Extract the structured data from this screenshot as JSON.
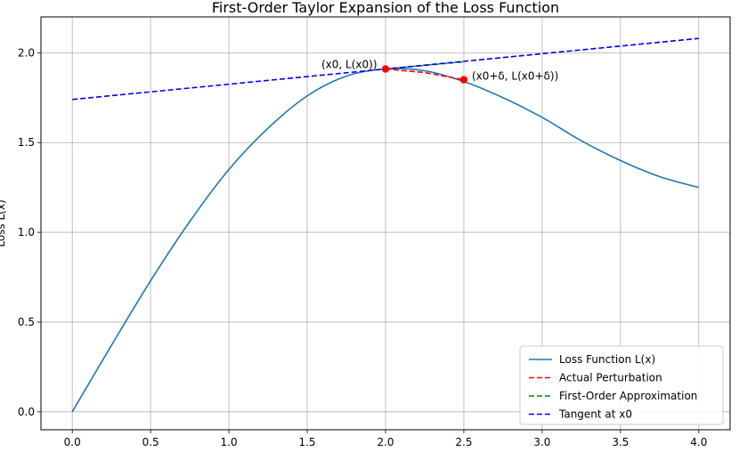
{
  "chart_data": {
    "type": "line",
    "title": "First-Order Taylor Expansion of the Loss Function",
    "xlabel": "",
    "ylabel": "Loss L(x)",
    "xlim": [
      -0.2,
      4.2
    ],
    "ylim": [
      -0.1,
      2.2
    ],
    "xticks": [
      0.0,
      0.5,
      1.0,
      1.5,
      2.0,
      2.5,
      3.0,
      3.5,
      4.0
    ],
    "xtick_labels": [
      "0.0",
      "0.5",
      "1.0",
      "1.5",
      "2.0",
      "2.5",
      "3.0",
      "3.5",
      "4.0"
    ],
    "yticks": [
      0.0,
      0.5,
      1.0,
      1.5,
      2.0
    ],
    "ytick_labels": [
      "0.0",
      "0.5",
      "1.0",
      "1.5",
      "2.0"
    ],
    "grid": true,
    "legend_position": "lower-right",
    "series": [
      {
        "name": "Loss Function L(x)",
        "color": "#1f77b4",
        "style": "solid",
        "x": [
          0.0,
          0.25,
          0.5,
          0.75,
          1.0,
          1.25,
          1.5,
          1.75,
          2.0,
          2.25,
          2.5,
          2.75,
          3.0,
          3.25,
          3.5,
          3.75,
          4.0
        ],
        "y": [
          0.0,
          0.37,
          0.73,
          1.06,
          1.35,
          1.58,
          1.76,
          1.87,
          1.91,
          1.9,
          1.84,
          1.75,
          1.64,
          1.51,
          1.4,
          1.31,
          1.25
        ]
      },
      {
        "name": "Actual Perturbation",
        "color": "#ff0000",
        "style": "dashed",
        "x": [
          2.0,
          2.25,
          2.5
        ],
        "y": [
          1.91,
          1.89,
          1.85
        ]
      },
      {
        "name": "First-Order Approximation",
        "color": "#008000",
        "style": "dashed",
        "x": [
          2.0,
          2.5
        ],
        "y": [
          1.91,
          1.95
        ]
      },
      {
        "name": "Tangent at x0",
        "color": "#0000ff",
        "style": "dashed",
        "x": [
          0.0,
          4.0
        ],
        "y": [
          1.74,
          2.08
        ]
      }
    ],
    "points": [
      {
        "x": 2.0,
        "y": 1.91,
        "label": "(x0, L(x0))",
        "color": "#ff0000"
      },
      {
        "x": 2.5,
        "y": 1.85,
        "label": "(x0+δ, L(x0+δ))",
        "color": "#ff0000"
      }
    ]
  }
}
